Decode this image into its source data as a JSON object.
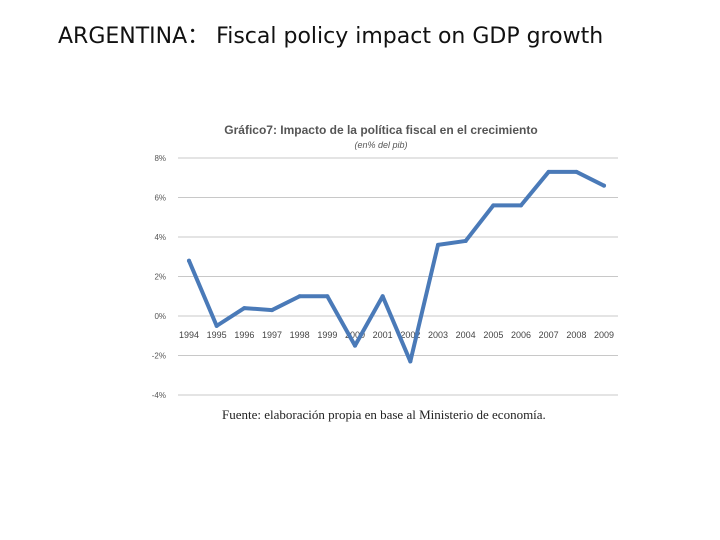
{
  "slide": {
    "title": "ARGENTINA： Fiscal policy impact on GDP growth"
  },
  "chart_data": {
    "type": "line",
    "title": "Gráfico7: Impacto de la política fiscal en el crecimiento",
    "subtitle": "(en% del pib)",
    "xlabel": "",
    "ylabel": "",
    "x": [
      "1994",
      "1995",
      "1996",
      "1997",
      "1998",
      "1999",
      "2000",
      "2001",
      "2002",
      "2003",
      "2004",
      "2005",
      "2006",
      "2007",
      "2008",
      "2009"
    ],
    "series": [
      {
        "values": [
          2.8,
          -0.5,
          0.4,
          0.3,
          1.0,
          1.0,
          -1.5,
          1.0,
          -2.3,
          3.6,
          3.8,
          5.6,
          5.6,
          7.3,
          7.3,
          6.6
        ]
      }
    ],
    "ylim": [
      -4,
      8
    ],
    "yticks": [
      8,
      6,
      4,
      2,
      0,
      -2,
      -4
    ],
    "ytick_labels": [
      "8%",
      "6%",
      "4%",
      "2%",
      "0%",
      "-2%",
      "-4%"
    ],
    "grid": true,
    "legend": "none",
    "line_color": "#4a7ab8",
    "source": "Fuente: elaboración propia en base al Ministerio de economía."
  }
}
